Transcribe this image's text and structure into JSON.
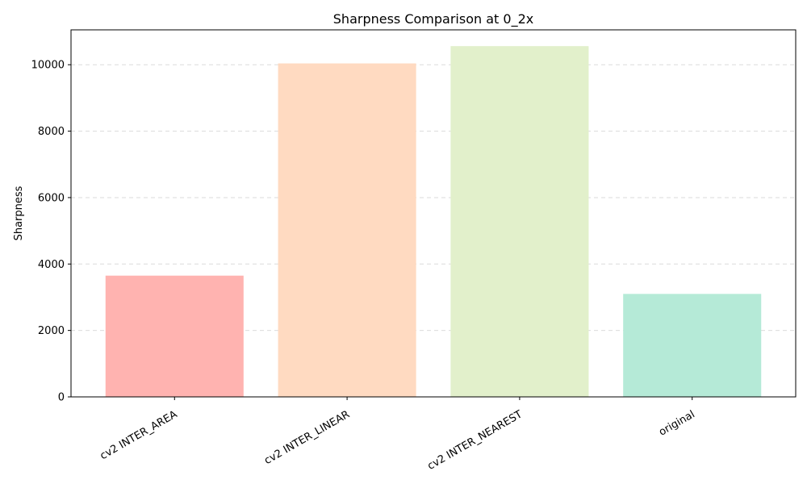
{
  "chart_data": {
    "type": "bar",
    "title": "Sharpness Comparison at 0_2x",
    "xlabel": "",
    "ylabel": "Sharpness",
    "categories": [
      "cv2 INTER_AREA",
      "cv2 INTER_LINEAR",
      "cv2 INTER_NEAREST",
      "original"
    ],
    "values": [
      3650,
      10040,
      10560,
      3100
    ],
    "colors": [
      "#ffb3b0",
      "#ffdac1",
      "#e2f0cb",
      "#b5ead7"
    ],
    "ylim": [
      0,
      11050
    ],
    "yticks": [
      0,
      2000,
      4000,
      6000,
      8000,
      10000
    ],
    "grid": true,
    "grid_axis": "y"
  }
}
